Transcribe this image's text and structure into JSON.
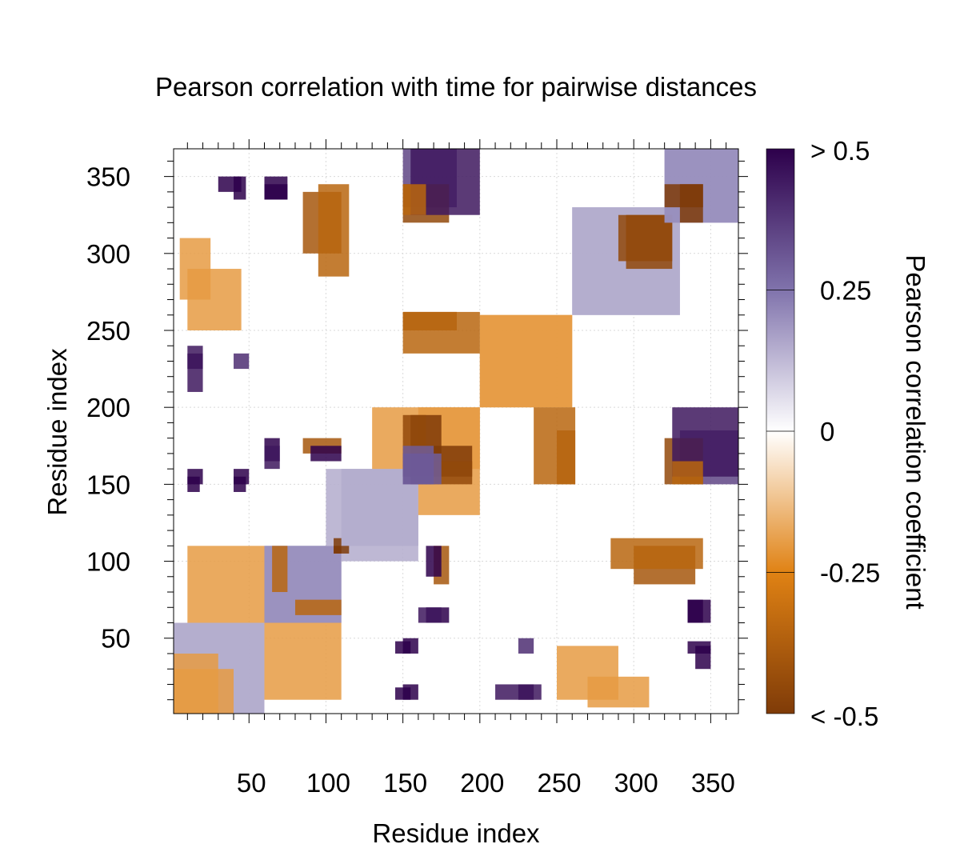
{
  "chart_data": {
    "type": "heatmap",
    "title": "Pearson correlation with time for pairwise distances",
    "xlabel": "Residue index",
    "ylabel": "Residue index",
    "xlim": [
      1,
      368
    ],
    "ylim": [
      1,
      368
    ],
    "x_ticks": [
      50,
      100,
      150,
      200,
      250,
      300,
      350
    ],
    "y_ticks": [
      50,
      100,
      150,
      200,
      250,
      300,
      350
    ],
    "grid": true,
    "matrix_symmetric": true,
    "colorbar": {
      "title": "Pearson correlation coefficient",
      "range": [
        -0.5,
        0.5
      ],
      "tick_labels": [
        "> 0.5",
        "0.25",
        "0",
        "-0.25",
        "< -0.5"
      ],
      "tick_values": [
        0.5,
        0.25,
        0,
        -0.25,
        -0.5
      ],
      "colors": {
        "max": "#2d004b",
        "high": "#8073ac",
        "zero": "#ffffff",
        "low": "#e08214",
        "min": "#7f3b08"
      }
    },
    "regions": [
      {
        "x": [
          1,
          60
        ],
        "y": [
          1,
          60
        ],
        "value": 0.15
      },
      {
        "x": [
          1,
          40
        ],
        "y": [
          1,
          30
        ],
        "value": -0.2
      },
      {
        "x": [
          10,
          60
        ],
        "y": [
          60,
          110
        ],
        "value": -0.2
      },
      {
        "x": [
          60,
          110
        ],
        "y": [
          60,
          110
        ],
        "value": 0.2
      },
      {
        "x": [
          80,
          110
        ],
        "y": [
          65,
          75
        ],
        "value": -0.35
      },
      {
        "x": [
          110,
          160
        ],
        "y": [
          100,
          160
        ],
        "value": 0.15
      },
      {
        "x": [
          160,
          200
        ],
        "y": [
          130,
          200
        ],
        "value": -0.2
      },
      {
        "x": [
          155,
          175
        ],
        "y": [
          170,
          195
        ],
        "value": -0.5
      },
      {
        "x": [
          155,
          170
        ],
        "y": [
          150,
          170
        ],
        "value": 0.5
      },
      {
        "x": [
          170,
          195
        ],
        "y": [
          150,
          165
        ],
        "value": -0.45
      },
      {
        "x": [
          200,
          260
        ],
        "y": [
          200,
          260
        ],
        "value": -0.2
      },
      {
        "x": [
          260,
          330
        ],
        "y": [
          260,
          330
        ],
        "value": 0.15
      },
      {
        "x": [
          290,
          325
        ],
        "y": [
          295,
          325
        ],
        "value": -0.45
      },
      {
        "x": [
          320,
          368
        ],
        "y": [
          320,
          368
        ],
        "value": 0.2
      },
      {
        "x": [
          320,
          345
        ],
        "y": [
          330,
          345
        ],
        "value": -0.5
      },
      {
        "x": [
          150,
          185
        ],
        "y": [
          330,
          368
        ],
        "value": 0.35
      },
      {
        "x": [
          150,
          180
        ],
        "y": [
          320,
          345
        ],
        "value": -0.45
      },
      {
        "x": [
          85,
          110
        ],
        "y": [
          300,
          340
        ],
        "value": -0.4
      },
      {
        "x": [
          30,
          45
        ],
        "y": [
          340,
          350
        ],
        "value": 0.5
      },
      {
        "x": [
          60,
          75
        ],
        "y": [
          335,
          345
        ],
        "value": 0.5
      },
      {
        "x": [
          5,
          25
        ],
        "y": [
          270,
          310
        ],
        "value": -0.2
      },
      {
        "x": [
          150,
          185
        ],
        "y": [
          250,
          262
        ],
        "value": -0.4
      },
      {
        "x": [
          10,
          20
        ],
        "y": [
          225,
          235
        ],
        "value": 0.5
      },
      {
        "x": [
          40,
          50
        ],
        "y": [
          225,
          235
        ],
        "value": 0.4
      },
      {
        "x": [
          10,
          20
        ],
        "y": [
          150,
          160
        ],
        "value": 0.5
      },
      {
        "x": [
          40,
          50
        ],
        "y": [
          150,
          160
        ],
        "value": 0.5
      },
      {
        "x": [
          60,
          70
        ],
        "y": [
          165,
          180
        ],
        "value": 0.5
      },
      {
        "x": [
          85,
          110
        ],
        "y": [
          170,
          180
        ],
        "value": -0.4
      },
      {
        "x": [
          235,
          262
        ],
        "y": [
          150,
          200
        ],
        "value": -0.35
      },
      {
        "x": [
          325,
          368
        ],
        "y": [
          155,
          200
        ],
        "value": 0.45
      },
      {
        "x": [
          325,
          345
        ],
        "y": [
          150,
          165
        ],
        "value": -0.35
      },
      {
        "x": [
          285,
          345
        ],
        "y": [
          95,
          115
        ],
        "value": -0.35
      },
      {
        "x": [
          335,
          350
        ],
        "y": [
          60,
          75
        ],
        "value": 0.5
      },
      {
        "x": [
          335,
          350
        ],
        "y": [
          40,
          48
        ],
        "value": 0.5
      },
      {
        "x": [
          250,
          290
        ],
        "y": [
          10,
          45
        ],
        "value": -0.2
      },
      {
        "x": [
          145,
          155
        ],
        "y": [
          40,
          48
        ],
        "value": 0.5
      },
      {
        "x": [
          145,
          155
        ],
        "y": [
          10,
          18
        ],
        "value": 0.5
      },
      {
        "x": [
          210,
          240
        ],
        "y": [
          10,
          20
        ],
        "value": 0.45
      },
      {
        "x": [
          160,
          175
        ],
        "y": [
          60,
          70
        ],
        "value": 0.45
      },
      {
        "x": [
          165,
          175
        ],
        "y": [
          90,
          110
        ],
        "value": 0.5
      },
      {
        "x": [
          105,
          115
        ],
        "y": [
          105,
          110
        ],
        "value": -0.5
      },
      {
        "x": [
          150,
          170
        ],
        "y": [
          150,
          175
        ],
        "value": 0.3
      }
    ]
  }
}
